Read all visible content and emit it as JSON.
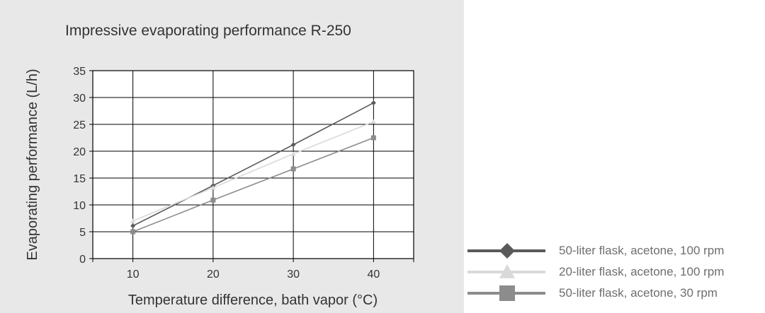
{
  "chart_data": {
    "type": "line",
    "title": "Impressive evaporating performance R-250",
    "xlabel": "Temperature difference, bath vapor (°C)",
    "ylabel": "Evaporating performance (L/h)",
    "x": [
      10,
      20,
      30,
      40
    ],
    "xlim": [
      5,
      45
    ],
    "ylim": [
      0,
      35
    ],
    "xticks": [
      10,
      20,
      30,
      40
    ],
    "yticks": [
      0,
      5,
      10,
      15,
      20,
      25,
      30,
      35
    ],
    "grid": true,
    "legend_position": "right-bottom outside",
    "series": [
      {
        "name": "50-liter flask, acetone, 100 rpm",
        "values": [
          6.1,
          13.6,
          21.2,
          29.0
        ],
        "color": "#5a5a5a",
        "marker": "diamond"
      },
      {
        "name": "20-liter flask, acetone, 100 rpm",
        "values": [
          7.0,
          13.2,
          19.5,
          25.5
        ],
        "color": "#d9d9d9",
        "marker": "triangle"
      },
      {
        "name": "50-liter flask, acetone, 30 rpm",
        "values": [
          5.0,
          10.9,
          16.7,
          22.5
        ],
        "color": "#8c8c8c",
        "marker": "square"
      }
    ]
  }
}
